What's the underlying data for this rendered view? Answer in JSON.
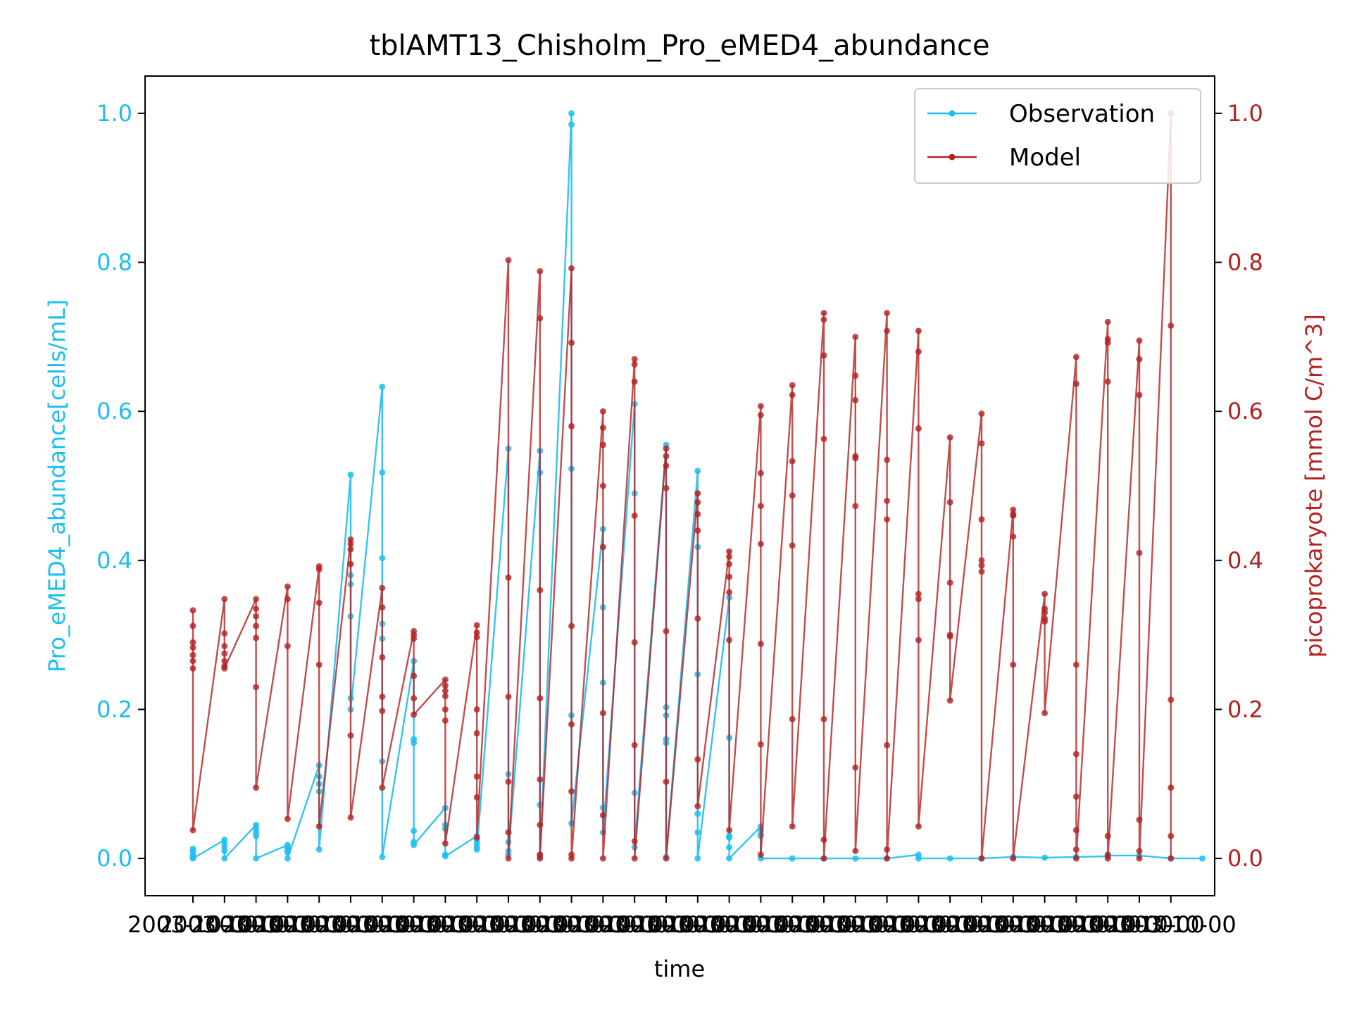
{
  "chart_data": {
    "type": "line",
    "title": "tblAMT13_Chisholm_Pro_eMED4_abundance",
    "xlabel": "time",
    "ylabel": "Pro_eMED4_abundance[cells/mL]",
    "ylabel_right": "picoprokaryote [mmol C/m^3]",
    "ylim": [
      -0.05,
      1.05
    ],
    "ylim_right": [
      -0.05,
      1.05
    ],
    "yticks": [
      "0.0",
      "0.2",
      "0.4",
      "0.6",
      "0.8",
      "1.0"
    ],
    "yticks_right": [
      "0.0",
      "0.2",
      "0.4",
      "0.6",
      "0.8",
      "1.0"
    ],
    "x_tick_count": 32,
    "x_tick_text": "2003-10-00",
    "colors": {
      "observation": "#1EBEF0",
      "model": "#B22222"
    },
    "legend": {
      "position": "top-right",
      "entries": [
        "Observation",
        "Model"
      ]
    },
    "series": [
      {
        "name": "Observation",
        "axis": "left",
        "values": [
          [
            0.013,
            0.01,
            0.005,
            0.002,
            0.0
          ],
          [
            0.025,
            0.02,
            0.015,
            0.01,
            0.0
          ],
          [
            0.045,
            0.04,
            0.035,
            0.03,
            0.0
          ],
          [
            0.018,
            0.015,
            0.012,
            0.008,
            0.0
          ],
          [
            0.125,
            0.11,
            0.1,
            0.09,
            0.012
          ],
          [
            0.515,
            0.38,
            0.368,
            0.325,
            0.215,
            0.2
          ],
          [
            0.633,
            0.518,
            0.403,
            0.315,
            0.295,
            0.13,
            0.002
          ],
          [
            0.265,
            0.16,
            0.155,
            0.037,
            0.022,
            0.018
          ],
          [
            0.068,
            0.045,
            0.04,
            0.005,
            0.003
          ],
          [
            0.03,
            0.025,
            0.02,
            0.015,
            0.012
          ],
          [
            0.55,
            0.113,
            0.022,
            0.01,
            0.005
          ],
          [
            0.547,
            0.518,
            0.072,
            0.005,
            0.002
          ],
          [
            1.0,
            0.985,
            0.523,
            0.192,
            0.047
          ],
          [
            0.442,
            0.337,
            0.236,
            0.068,
            0.035
          ],
          [
            0.61,
            0.49,
            0.088,
            0.015
          ],
          [
            0.555,
            0.203,
            0.192,
            0.16,
            0.155,
            0.002
          ],
          [
            0.52,
            0.418,
            0.247,
            0.06,
            0.035,
            0.0
          ],
          [
            0.35,
            0.162,
            0.03,
            0.028,
            0.015,
            0.0
          ],
          [
            0.043,
            0.038,
            0.032,
            0.03,
            0.0
          ],
          [
            0.0
          ],
          [
            0.0
          ],
          [
            0.0
          ],
          [
            0.0
          ],
          [
            0.005,
            0.0
          ],
          [
            0.0
          ],
          [
            0.0
          ],
          [
            0.002
          ],
          [
            0.001
          ],
          [
            0.002
          ],
          [
            0.003,
            0.004
          ],
          [
            0.004
          ],
          [
            0.0
          ],
          [
            0.0
          ]
        ]
      },
      {
        "name": "Model",
        "axis": "right",
        "values": [
          [
            0.333,
            0.312,
            0.29,
            0.283,
            0.273,
            0.265,
            0.255,
            0.038
          ],
          [
            0.348,
            0.302,
            0.285,
            0.275,
            0.265,
            0.258,
            0.255
          ],
          [
            0.348,
            0.335,
            0.325,
            0.312,
            0.296,
            0.23,
            0.095
          ],
          [
            0.365,
            0.348,
            0.285,
            0.053
          ],
          [
            0.392,
            0.388,
            0.343,
            0.26,
            0.043
          ],
          [
            0.428,
            0.422,
            0.415,
            0.395,
            0.165,
            0.055
          ],
          [
            0.363,
            0.337,
            0.27,
            0.217,
            0.198,
            0.095
          ],
          [
            0.305,
            0.3,
            0.295,
            0.245,
            0.215,
            0.193
          ],
          [
            0.24,
            0.232,
            0.225,
            0.218,
            0.2,
            0.185,
            0.02
          ],
          [
            0.313,
            0.303,
            0.297,
            0.2,
            0.168,
            0.11,
            0.082,
            0.028
          ],
          [
            0.803,
            0.377,
            0.217,
            0.103,
            0.035,
            0.0
          ],
          [
            0.788,
            0.725,
            0.36,
            0.215,
            0.106,
            0.045,
            0.005,
            0.0
          ],
          [
            0.792,
            0.692,
            0.58,
            0.312,
            0.18,
            0.09,
            0.005,
            0.0
          ],
          [
            0.6,
            0.578,
            0.555,
            0.5,
            0.418,
            0.195,
            0.058,
            0.0
          ],
          [
            0.67,
            0.663,
            0.64,
            0.46,
            0.29,
            0.152,
            0.023,
            0.0
          ],
          [
            0.55,
            0.54,
            0.527,
            0.497,
            0.305,
            0.103,
            0.0
          ],
          [
            0.49,
            0.478,
            0.462,
            0.44,
            0.322,
            0.133,
            0.07
          ],
          [
            0.412,
            0.405,
            0.395,
            0.378,
            0.357,
            0.293,
            0.038
          ],
          [
            0.607,
            0.595,
            0.517,
            0.473,
            0.422,
            0.288,
            0.153,
            0.005
          ],
          [
            0.635,
            0.622,
            0.533,
            0.487,
            0.42,
            0.187,
            0.043
          ],
          [
            0.732,
            0.723,
            0.675,
            0.563,
            0.187,
            0.025,
            0.0
          ],
          [
            0.7,
            0.648,
            0.615,
            0.54,
            0.537,
            0.473,
            0.122,
            0.01
          ],
          [
            0.732,
            0.708,
            0.535,
            0.48,
            0.455,
            0.152,
            0.012,
            0.0
          ],
          [
            0.708,
            0.68,
            0.577,
            0.355,
            0.348,
            0.293,
            0.043
          ],
          [
            0.565,
            0.478,
            0.37,
            0.3,
            0.298,
            0.212
          ],
          [
            0.597,
            0.557,
            0.455,
            0.4,
            0.393,
            0.385,
            0.0
          ],
          [
            0.468,
            0.462,
            0.46,
            0.432,
            0.26,
            0.0
          ],
          [
            0.355,
            0.335,
            0.33,
            0.322,
            0.318,
            0.195
          ],
          [
            0.673,
            0.637,
            0.26,
            0.14,
            0.083,
            0.038,
            0.012,
            0.0
          ],
          [
            0.72,
            0.697,
            0.692,
            0.64,
            0.03,
            0.005,
            0.0
          ],
          [
            0.695,
            0.67,
            0.622,
            0.41,
            0.052,
            0.01,
            0.0
          ],
          [
            1.0,
            0.715,
            0.213,
            0.095,
            0.03,
            0.0
          ]
        ]
      }
    ]
  }
}
